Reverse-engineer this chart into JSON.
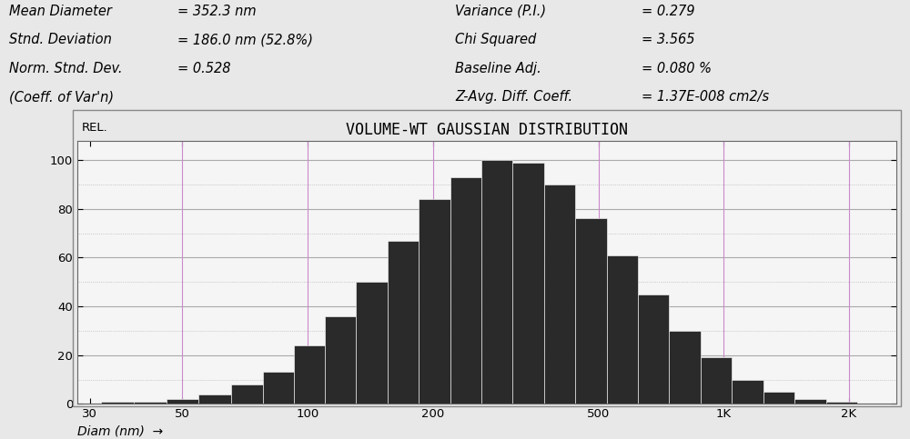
{
  "title": "VOLUME-WT GAUSSIAN DISTRIBUTION",
  "rel_label": "REL.",
  "xlabel": "Diam (nm)  →",
  "fig_bg_color": "#e8e8e8",
  "plot_bg_color": "#f5f5f5",
  "bar_color": "#2a2a2a",
  "bar_edge_color": "#888888",
  "grid_color_h": "#aaaaaa",
  "grid_color_v": "#cc88cc",
  "stats_left": [
    [
      "Mean Diameter",
      "= 352.3 nm"
    ],
    [
      "Stnd. Deviation",
      "= 186.0 nm (52.8%)"
    ],
    [
      "Norm. Stnd. Dev.",
      "= 0.528"
    ],
    [
      "(Coeff. of Var'n)",
      ""
    ]
  ],
  "stats_right": [
    [
      "Variance (P.I.)",
      "= 0.279"
    ],
    [
      "Chi Squared",
      "= 3.565"
    ],
    [
      "Baseline Adj.",
      "= 0.080 %"
    ],
    [
      "Z-Avg. Diff. Coeff.",
      "= 1.37E-008 cm2/s"
    ]
  ],
  "bar_centers_nm": [
    35,
    42,
    50,
    60,
    72,
    85,
    101,
    120,
    143,
    170,
    202,
    240,
    285,
    340,
    404,
    480,
    571,
    679,
    807,
    960,
    1142,
    1358,
    1615,
    1920
  ],
  "bar_heights": [
    1,
    1,
    2,
    4,
    8,
    13,
    24,
    36,
    50,
    67,
    84,
    93,
    100,
    99,
    90,
    76,
    61,
    45,
    30,
    19,
    10,
    5,
    2,
    1
  ],
  "ylim": [
    0,
    108
  ],
  "yticks": [
    0,
    20,
    40,
    60,
    80,
    100
  ],
  "xtick_positions": [
    30,
    50,
    100,
    200,
    500,
    1000,
    2000
  ],
  "xtick_labels": [
    "30",
    "50",
    "100",
    "200",
    "500",
    "1K",
    "2K"
  ],
  "vgrid_positions": [
    50,
    100,
    200,
    500,
    1000,
    2000
  ],
  "title_fontsize": 12,
  "stats_fontsize": 10.5,
  "axis_label_fontsize": 10,
  "tick_fontsize": 9.5
}
